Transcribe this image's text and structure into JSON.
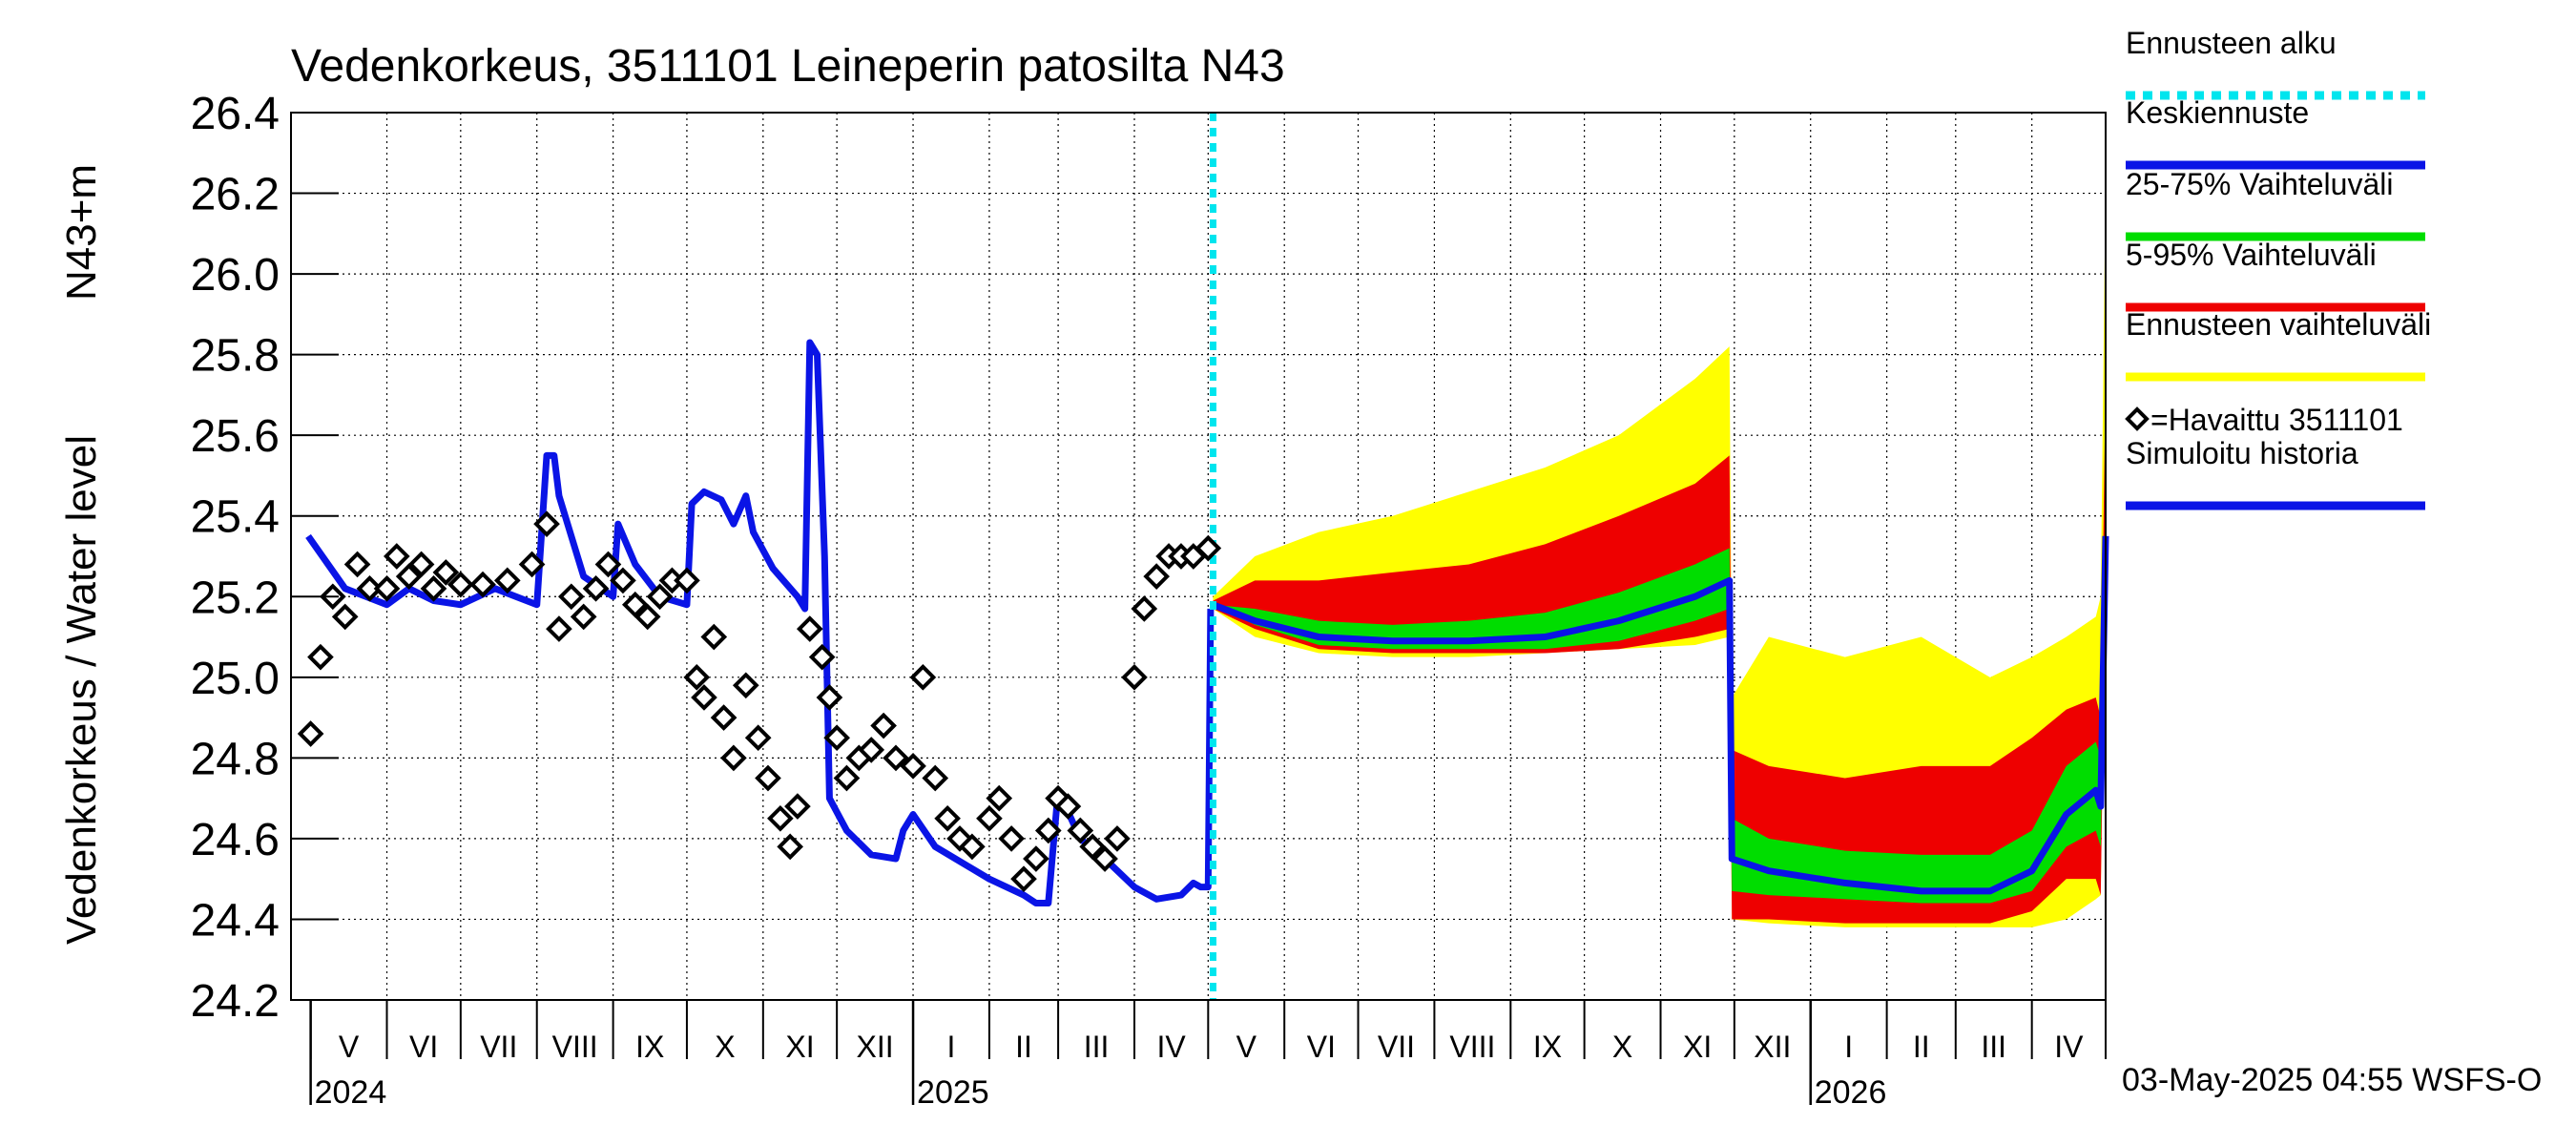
{
  "chart_data": {
    "type": "line",
    "title": "Vedenkorkeus, 3511101 Leineperin patosilta N43",
    "ylabel_left": "Vedenkorkeus / Water level",
    "ylabel_right": "N43+m",
    "ylim": [
      24.2,
      26.4
    ],
    "yticks": [
      "24.2",
      "24.4",
      "24.6",
      "24.8",
      "25.0",
      "25.2",
      "25.4",
      "25.6",
      "25.8",
      "26.0",
      "26.2",
      "26.4"
    ],
    "grid": true,
    "legend_position": "right",
    "x_months": [
      "V",
      "VI",
      "VII",
      "VIII",
      "IX",
      "X",
      "XI",
      "XII",
      "I",
      "II",
      "III",
      "IV",
      "V",
      "VI",
      "VII",
      "VIII",
      "IX",
      "X",
      "XI",
      "XII",
      "I",
      "II",
      "III",
      "IV"
    ],
    "x_years": [
      "2024",
      "2025",
      "2026"
    ],
    "forecast_start": "2025-05-03",
    "footer": "03-May-2025 04:55 WSFS-O",
    "legend": [
      {
        "label": "Ennusteen alku",
        "color": "#00e5ee",
        "style": "dotted"
      },
      {
        "label": "Keskiennuste",
        "color": "#0a14e6",
        "style": "solid"
      },
      {
        "label": "25-75% Vaihteluväli",
        "color": "#00dd00",
        "style": "solid"
      },
      {
        "label": "5-95% Vaihteluväli",
        "color": "#ee0000",
        "style": "solid"
      },
      {
        "label": "Ennusteen vaihteluväli",
        "color": "#ffff00",
        "style": "solid"
      },
      {
        "label": "=Havaittu 3511101",
        "color": "#000000",
        "style": "marker"
      },
      {
        "label": "Simuloitu historia",
        "color": "#0a14e6",
        "style": "solid"
      }
    ],
    "series": [
      {
        "name": "Simuloitu historia",
        "x": [
          "2024-04-30",
          "2024-05-15",
          "2024-06-01",
          "2024-06-10",
          "2024-06-20",
          "2024-07-01",
          "2024-07-15",
          "2024-08-01",
          "2024-08-05",
          "2024-08-08",
          "2024-08-10",
          "2024-08-20",
          "2024-09-01",
          "2024-09-03",
          "2024-09-10",
          "2024-09-20",
          "2024-10-01",
          "2024-10-03",
          "2024-10-08",
          "2024-10-15",
          "2024-10-20",
          "2024-10-25",
          "2024-10-28",
          "2024-11-05",
          "2024-11-15",
          "2024-11-18",
          "2024-11-20",
          "2024-11-23",
          "2024-11-26",
          "2024-11-28",
          "2024-12-05",
          "2024-12-15",
          "2024-12-25",
          "2024-12-28",
          "2025-01-01",
          "2025-01-10",
          "2025-02-01",
          "2025-02-15",
          "2025-02-20",
          "2025-02-25",
          "2025-03-01",
          "2025-03-10",
          "2025-03-20",
          "2025-04-01",
          "2025-04-10",
          "2025-04-20",
          "2025-04-25",
          "2025-04-28",
          "2025-05-01",
          "2025-05-02"
        ],
        "values": [
          25.35,
          25.22,
          25.18,
          25.22,
          25.19,
          25.18,
          25.22,
          25.18,
          25.55,
          25.55,
          25.45,
          25.25,
          25.2,
          25.38,
          25.28,
          25.2,
          25.18,
          25.43,
          25.46,
          25.44,
          25.38,
          25.45,
          25.36,
          25.27,
          25.2,
          25.17,
          25.83,
          25.8,
          25.3,
          24.7,
          24.62,
          24.56,
          24.55,
          24.62,
          24.66,
          24.58,
          24.5,
          24.46,
          24.44,
          24.44,
          24.72,
          24.6,
          24.55,
          24.48,
          24.45,
          24.46,
          24.49,
          24.48,
          24.48,
          25.17
        ]
      },
      {
        "name": "Keskiennuste",
        "x": [
          "2025-05-03",
          "2025-05-20",
          "2025-06-15",
          "2025-07-15",
          "2025-08-15",
          "2025-09-15",
          "2025-10-15",
          "2025-11-15",
          "2025-11-29",
          "2025-11-30",
          "2025-12-15",
          "2026-01-15",
          "2026-02-15",
          "2026-03-15",
          "2026-04-01",
          "2026-04-15",
          "2026-04-27",
          "2026-04-29",
          "2026-05-01"
        ],
        "values": [
          25.18,
          25.14,
          25.1,
          25.09,
          25.09,
          25.1,
          25.14,
          25.2,
          25.24,
          24.55,
          24.52,
          24.49,
          24.47,
          24.47,
          24.52,
          24.66,
          24.72,
          24.68,
          25.35
        ]
      },
      {
        "name": "Havaittu 3511101",
        "x": [
          "2024-05-01",
          "2024-05-05",
          "2024-05-10",
          "2024-05-15",
          "2024-05-20",
          "2024-05-25",
          "2024-06-01",
          "2024-06-05",
          "2024-06-10",
          "2024-06-15",
          "2024-06-20",
          "2024-06-25",
          "2024-07-01",
          "2024-07-10",
          "2024-07-20",
          "2024-07-30",
          "2024-08-05",
          "2024-08-10",
          "2024-08-15",
          "2024-08-20",
          "2024-08-25",
          "2024-08-30",
          "2024-09-05",
          "2024-09-10",
          "2024-09-15",
          "2024-09-20",
          "2024-09-25",
          "2024-10-01",
          "2024-10-05",
          "2024-10-08",
          "2024-10-12",
          "2024-10-16",
          "2024-10-20",
          "2024-10-25",
          "2024-10-30",
          "2024-11-03",
          "2024-11-08",
          "2024-11-12",
          "2024-11-15",
          "2024-11-20",
          "2024-11-25",
          "2024-11-28",
          "2024-12-01",
          "2024-12-05",
          "2024-12-10",
          "2024-12-15",
          "2024-12-20",
          "2024-12-25",
          "2025-01-01",
          "2025-01-05",
          "2025-01-10",
          "2025-01-15",
          "2025-01-20",
          "2025-01-25",
          "2025-02-01",
          "2025-02-05",
          "2025-02-10",
          "2025-02-15",
          "2025-02-20",
          "2025-02-25",
          "2025-03-01",
          "2025-03-05",
          "2025-03-10",
          "2025-03-15",
          "2025-03-20",
          "2025-03-25",
          "2025-04-01",
          "2025-04-05",
          "2025-04-10",
          "2025-04-15",
          "2025-04-20",
          "2025-04-25",
          "2025-05-01"
        ],
        "values": [
          24.86,
          25.05,
          25.2,
          25.15,
          25.28,
          25.22,
          25.22,
          25.3,
          25.25,
          25.28,
          25.22,
          25.26,
          25.23,
          25.23,
          25.24,
          25.28,
          25.38,
          25.12,
          25.2,
          25.15,
          25.22,
          25.28,
          25.24,
          25.18,
          25.15,
          25.2,
          25.24,
          25.24,
          25.0,
          24.95,
          25.1,
          24.9,
          24.8,
          24.98,
          24.85,
          24.75,
          24.65,
          24.58,
          24.68,
          25.12,
          25.05,
          24.95,
          24.85,
          24.75,
          24.8,
          24.82,
          24.88,
          24.8,
          24.78,
          25.0,
          24.75,
          24.65,
          24.6,
          24.58,
          24.65,
          24.7,
          24.6,
          24.5,
          24.55,
          24.62,
          24.7,
          24.68,
          24.62,
          24.58,
          24.55,
          24.6,
          25.0,
          25.17,
          25.25,
          25.3,
          25.3,
          25.3,
          25.32
        ]
      },
      {
        "name": "Ennusteen vaihteluväli",
        "x": [
          "2025-05-03",
          "2025-05-20",
          "2025-06-15",
          "2025-07-15",
          "2025-08-15",
          "2025-09-15",
          "2025-10-15",
          "2025-11-15",
          "2025-11-29",
          "2025-11-30",
          "2025-12-15",
          "2026-01-15",
          "2026-02-15",
          "2026-03-15",
          "2026-04-01",
          "2026-04-15",
          "2026-04-27",
          "2026-04-29",
          "2026-05-01"
        ],
        "upper": [
          25.2,
          25.3,
          25.36,
          25.4,
          25.46,
          25.52,
          25.6,
          25.74,
          25.82,
          24.95,
          25.1,
          25.05,
          25.1,
          25.0,
          25.05,
          25.1,
          25.15,
          25.2,
          26.25
        ],
        "lower": [
          25.17,
          25.1,
          25.06,
          25.05,
          25.05,
          25.06,
          25.07,
          25.08,
          25.1,
          24.4,
          24.39,
          24.38,
          24.38,
          24.38,
          24.38,
          24.4,
          24.45,
          24.46,
          25.3
        ]
      },
      {
        "name": "5-95% Vaihteluväli",
        "x": [
          "2025-05-03",
          "2025-05-20",
          "2025-06-15",
          "2025-07-15",
          "2025-08-15",
          "2025-09-15",
          "2025-10-15",
          "2025-11-15",
          "2025-11-29",
          "2025-11-30",
          "2025-12-15",
          "2026-01-15",
          "2026-02-15",
          "2026-03-15",
          "2026-04-01",
          "2026-04-15",
          "2026-04-27",
          "2026-04-29",
          "2026-05-01"
        ],
        "upper": [
          25.19,
          25.24,
          25.24,
          25.26,
          25.28,
          25.33,
          25.4,
          25.48,
          25.55,
          24.82,
          24.78,
          24.75,
          24.78,
          24.78,
          24.85,
          24.92,
          24.95,
          24.9,
          25.75
        ],
        "lower": [
          25.17,
          25.12,
          25.07,
          25.06,
          25.06,
          25.06,
          25.07,
          25.1,
          25.12,
          24.4,
          24.4,
          24.39,
          24.39,
          24.39,
          24.42,
          24.5,
          24.5,
          24.46,
          25.3
        ]
      },
      {
        "name": "25-75% Vaihteluväli",
        "x": [
          "2025-05-03",
          "2025-05-20",
          "2025-06-15",
          "2025-07-15",
          "2025-08-15",
          "2025-09-15",
          "2025-10-15",
          "2025-11-15",
          "2025-11-29",
          "2025-11-30",
          "2025-12-15",
          "2026-01-15",
          "2026-02-15",
          "2026-03-15",
          "2026-04-01",
          "2026-04-15",
          "2026-04-27",
          "2026-04-29",
          "2026-05-01"
        ],
        "upper": [
          25.18,
          25.17,
          25.14,
          25.13,
          25.14,
          25.16,
          25.21,
          25.28,
          25.32,
          24.65,
          24.6,
          24.57,
          24.56,
          24.56,
          24.62,
          24.78,
          24.84,
          24.8,
          25.5
        ],
        "lower": [
          25.18,
          25.13,
          25.08,
          25.07,
          25.07,
          25.07,
          25.09,
          25.14,
          25.17,
          24.47,
          24.46,
          24.45,
          24.44,
          24.44,
          24.47,
          24.58,
          24.62,
          24.58,
          25.3
        ]
      }
    ]
  }
}
